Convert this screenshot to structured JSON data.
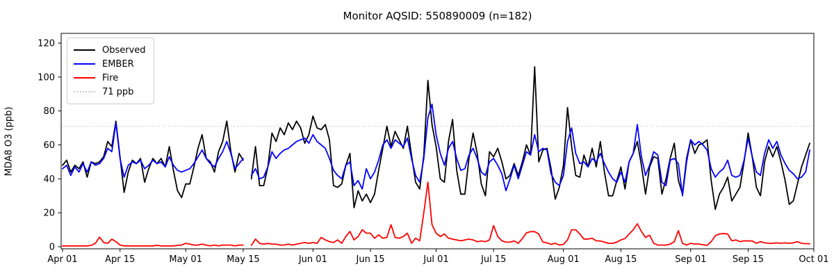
{
  "chart_data": {
    "type": "line",
    "title": "Monitor AQSID: 550890009 (n=182)",
    "xlabel": "",
    "ylabel": "MDA8 O3 (ppb)",
    "n_points": 182,
    "x_unit": "daily values, day index 0 = Apr 01 (missing day at index 45 = May 16)",
    "x_tick_labels": [
      "Apr 01",
      "Apr 15",
      "May 01",
      "May 15",
      "Jun 01",
      "Jun 15",
      "Jul 01",
      "Jul 15",
      "Aug 01",
      "Aug 15",
      "Sep 01",
      "Sep 15",
      "Oct 01"
    ],
    "x_tick_days": [
      0,
      14,
      30,
      44,
      61,
      75,
      91,
      105,
      122,
      136,
      153,
      167,
      183
    ],
    "y_ticks": [
      0,
      20,
      40,
      60,
      80,
      100,
      120
    ],
    "ylim": [
      -4.6,
      126
    ],
    "xlim_days": [
      -0.4,
      183
    ],
    "grid": false,
    "legend_position": "upper left",
    "threshold": {
      "value": 71,
      "label": "71 ppb",
      "color": "#c9c9c9"
    },
    "series": [
      {
        "name": "Observed",
        "color": "#000000",
        "values": [
          48,
          51,
          44,
          48,
          46,
          50,
          41,
          50,
          49,
          50,
          53,
          62,
          59,
          74,
          53,
          32,
          44,
          51,
          49,
          52,
          38,
          46,
          52,
          49,
          52,
          47,
          59,
          45,
          33,
          29,
          37,
          37,
          47,
          58,
          66,
          52,
          50,
          44,
          56,
          62,
          74,
          56,
          44,
          55,
          51,
          null,
          40,
          59,
          36,
          36,
          47,
          67,
          62,
          70,
          66,
          73,
          69,
          74,
          70,
          61,
          66,
          77,
          70,
          69,
          72,
          63,
          36,
          35,
          37,
          48,
          55,
          23,
          33,
          27,
          31,
          26,
          31,
          45,
          58,
          71,
          59,
          68,
          63,
          58,
          71,
          54,
          38,
          34,
          54,
          98,
          72,
          59,
          40,
          38,
          62,
          75,
          45,
          31,
          31,
          52,
          67,
          55,
          37,
          30,
          56,
          53,
          58,
          50,
          40,
          42,
          49,
          42,
          50,
          60,
          54,
          106,
          50,
          57,
          58,
          46,
          28,
          35,
          48,
          82,
          59,
          42,
          41,
          54,
          47,
          58,
          47,
          62,
          44,
          30,
          30,
          39,
          47,
          34,
          50,
          55,
          62,
          48,
          31,
          47,
          53,
          52,
          31,
          40,
          52,
          61,
          39,
          31,
          52,
          63,
          55,
          60,
          61,
          63,
          39,
          22,
          31,
          35,
          41,
          27,
          31,
          35,
          50,
          67,
          53,
          35,
          30,
          50,
          59,
          53,
          59,
          50,
          39,
          25,
          27,
          37,
          47,
          54,
          61
        ]
      },
      {
        "name": "EMBER",
        "color": "#0000ff",
        "values": [
          46,
          48,
          42,
          47,
          44,
          49,
          44,
          50,
          48,
          49,
          52,
          58,
          56,
          73,
          52,
          41,
          48,
          50,
          49,
          51,
          46,
          48,
          51,
          49,
          50,
          47,
          53,
          48,
          45,
          44,
          45,
          46,
          49,
          53,
          57,
          52,
          49,
          47,
          52,
          56,
          62,
          55,
          46,
          49,
          52,
          null,
          42,
          46,
          40,
          41,
          47,
          56,
          52,
          55,
          57,
          58,
          60,
          62,
          63,
          64,
          61,
          66,
          62,
          60,
          58,
          52,
          45,
          42,
          40,
          48,
          50,
          36,
          39,
          34,
          46,
          40,
          44,
          51,
          60,
          63,
          58,
          63,
          61,
          59,
          64,
          52,
          42,
          38,
          52,
          76,
          84,
          66,
          55,
          48,
          58,
          62,
          52,
          45,
          46,
          54,
          58,
          52,
          44,
          42,
          50,
          52,
          48,
          43,
          33,
          40,
          48,
          40,
          48,
          56,
          54,
          66,
          56,
          58,
          57,
          43,
          38,
          36,
          42,
          62,
          70,
          55,
          49,
          50,
          47,
          52,
          50,
          55,
          49,
          44,
          40,
          38,
          44,
          38,
          50,
          55,
          72,
          53,
          42,
          48,
          56,
          54,
          38,
          36,
          51,
          52,
          49,
          30,
          50,
          63,
          60,
          62,
          60,
          57,
          46,
          41,
          44,
          46,
          51,
          42,
          41,
          42,
          51,
          64,
          53,
          44,
          42,
          55,
          63,
          58,
          62,
          54,
          49,
          45,
          43,
          40,
          41,
          44,
          57
        ]
      },
      {
        "name": "Fire",
        "color": "#ff0000",
        "values": [
          0.5,
          0.5,
          0.5,
          0.5,
          0.5,
          0.5,
          0.5,
          0.8,
          2,
          5.7,
          2.5,
          2,
          4.5,
          3,
          1,
          0.5,
          0.5,
          0.5,
          0.5,
          0.5,
          0.5,
          0.5,
          0.5,
          0.8,
          0.5,
          0.5,
          0.5,
          0.5,
          0.8,
          1,
          2,
          1.5,
          1,
          1,
          1.5,
          1,
          0.5,
          1,
          0.5,
          1,
          1,
          1,
          0.5,
          1,
          1,
          null,
          0.8,
          4.5,
          2,
          1.5,
          2,
          1.5,
          1.5,
          1,
          1,
          1.5,
          1,
          1.5,
          2,
          2.5,
          2,
          2.5,
          2,
          5.5,
          4,
          3,
          2.5,
          4,
          2,
          6,
          9,
          4,
          6,
          10,
          8,
          8,
          5,
          7,
          5,
          5.5,
          13,
          5.5,
          5,
          6,
          8,
          2,
          5,
          3.5,
          20,
          38,
          13,
          8,
          6,
          7.5,
          5,
          4.5,
          4,
          3.5,
          4,
          4.5,
          4,
          3,
          3.4,
          3,
          4,
          12.5,
          6,
          3.5,
          2.7,
          2.7,
          3.4,
          2,
          4.8,
          8.2,
          8.9,
          8.9,
          7.5,
          2.7,
          2.3,
          1.4,
          2,
          1,
          1.4,
          4,
          10,
          10,
          7.5,
          4.5,
          4.5,
          5,
          3.5,
          3.4,
          2.7,
          2,
          2,
          2.7,
          4,
          4.8,
          7.5,
          10,
          13.5,
          9,
          5.5,
          6.8,
          2,
          1,
          1,
          1,
          1.5,
          3,
          9.5,
          2,
          1,
          2,
          1.6,
          1.6,
          1.2,
          0.8,
          3,
          6.5,
          7.5,
          7.8,
          7.5,
          3.5,
          4,
          3,
          3.5,
          3.4,
          3.4,
          2,
          3,
          2.3,
          2,
          2,
          2.3,
          2,
          2.3,
          2,
          2.3,
          3,
          2,
          1.8,
          1.8
        ]
      }
    ]
  },
  "legend": {
    "entries": [
      "Observed",
      "EMBER",
      "Fire",
      "71 ppb"
    ]
  }
}
